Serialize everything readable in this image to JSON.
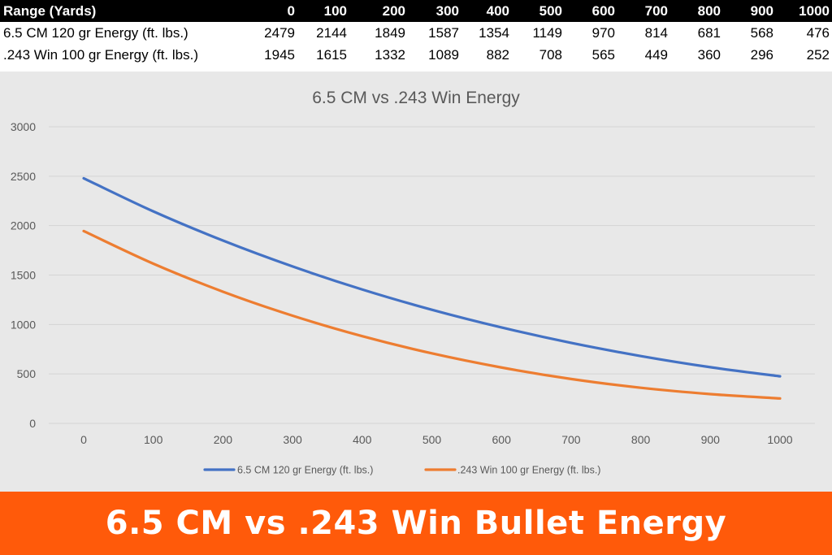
{
  "table": {
    "header_label": "Range (Yards)",
    "columns": [
      "0",
      "100",
      "200",
      "300",
      "400",
      "500",
      "600",
      "700",
      "800",
      "900",
      "1000"
    ],
    "rows": [
      {
        "label": "6.5 CM 120 gr Energy (ft. lbs.)",
        "values": [
          "2479",
          "2144",
          "1849",
          "1587",
          "1354",
          "1149",
          "970",
          "814",
          "681",
          "568",
          "476"
        ]
      },
      {
        "label": ".243 Win 100 gr Energy (ft. lbs.)",
        "values": [
          "1945",
          "1615",
          "1332",
          "1089",
          "882",
          "708",
          "565",
          "449",
          "360",
          "296",
          "252"
        ]
      }
    ]
  },
  "chart_data": {
    "type": "line",
    "title": "6.5 CM vs .243 Win Energy",
    "x": [
      0,
      100,
      200,
      300,
      400,
      500,
      600,
      700,
      800,
      900,
      1000
    ],
    "x_tick_labels": [
      "0",
      "100",
      "200",
      "300",
      "400",
      "500",
      "600",
      "700",
      "800",
      "900",
      "1000"
    ],
    "series": [
      {
        "name": "6.5 CM 120 gr Energy (ft. lbs.)",
        "color": "#4472c4",
        "values": [
          2479,
          2144,
          1849,
          1587,
          1354,
          1149,
          970,
          814,
          681,
          568,
          476
        ]
      },
      {
        "name": ".243 Win 100 gr Energy (ft. lbs.)",
        "color": "#ed7d31",
        "values": [
          1945,
          1615,
          1332,
          1089,
          882,
          708,
          565,
          449,
          360,
          296,
          252
        ]
      }
    ],
    "ylim": [
      0,
      3000
    ],
    "y_ticks": [
      0,
      500,
      1000,
      1500,
      2000,
      2500,
      3000
    ],
    "xlabel": "",
    "ylabel": "",
    "grid": true,
    "legend_position": "bottom"
  },
  "banner": {
    "title": "6.5 CM vs .243 Win Bullet Energy",
    "background": "#ff5a0a"
  },
  "colors": {
    "chart_background": "#e8e8e8",
    "gridline": "#d4d4d4",
    "axis_text": "#595959"
  }
}
